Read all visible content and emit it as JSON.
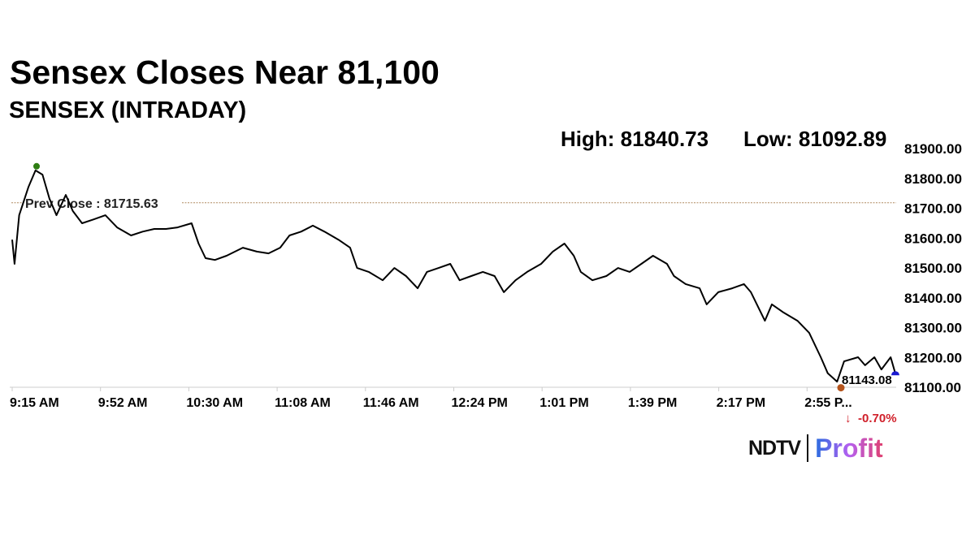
{
  "title": "Sensex Closes Near 81,100",
  "subtitle": "SENSEX (INTRADAY)",
  "high_label": "High: 81840.73",
  "low_label": "Low: 81092.89",
  "logo": {
    "brand": "NDTV",
    "product": "Profit"
  },
  "chart_data": {
    "type": "line",
    "title": "Sensex Closes Near 81,100",
    "subtitle": "SENSEX (INTRADAY)",
    "ylim": [
      81100,
      81900
    ],
    "y_ticks": [
      "81100.00",
      "81200.00",
      "81300.00",
      "81400.00",
      "81500.00",
      "81600.00",
      "81700.00",
      "81800.00",
      "81900.00"
    ],
    "x_ticks": [
      "9:15 AM",
      "9:52 AM",
      "10:30 AM",
      "11:08 AM",
      "11:46 AM",
      "12:24 PM",
      "1:01 PM",
      "1:39 PM",
      "2:17 PM",
      "2:55 P..."
    ],
    "prev_close": {
      "label": "Prev Close : 81715.63",
      "value": 81715.63
    },
    "last": {
      "value_label": "81143.08",
      "change_label": "-0.70%",
      "change_color": "#d0202a"
    },
    "high": 81840.73,
    "low": 81092.89,
    "colors": {
      "line": "#000000",
      "high_marker": "#2e7d12",
      "low_marker": "#b5541c",
      "last_marker": "#1a1ad0",
      "prev_close_line": "#b08a60"
    },
    "grid": false,
    "x": [
      "9:15",
      "9:16",
      "9:18",
      "9:22",
      "9:25",
      "9:28",
      "9:31",
      "9:34",
      "9:38",
      "9:41",
      "9:45",
      "9:50",
      "9:55",
      "10:00",
      "10:06",
      "10:11",
      "10:16",
      "10:21",
      "10:26",
      "10:32",
      "10:35",
      "10:38",
      "10:42",
      "10:47",
      "10:54",
      "11:00",
      "11:05",
      "11:10",
      "11:14",
      "11:19",
      "11:24",
      "11:29",
      "11:35",
      "11:40",
      "11:43",
      "11:48",
      "11:54",
      "11:59",
      "12:04",
      "12:09",
      "12:13",
      "12:18",
      "12:23",
      "12:27",
      "12:32",
      "12:37",
      "12:42",
      "12:46",
      "12:51",
      "12:56",
      "13:02",
      "13:07",
      "13:12",
      "13:16",
      "13:19",
      "13:24",
      "13:30",
      "13:35",
      "13:40",
      "13:45",
      "13:50",
      "13:56",
      "13:59",
      "14:04",
      "14:10",
      "14:13",
      "14:18",
      "14:24",
      "14:29",
      "14:32",
      "14:38",
      "14:41",
      "14:46",
      "14:52",
      "14:57",
      "15:02",
      "15:05",
      "15:09",
      "15:12",
      "15:18",
      "15:21",
      "15:25",
      "15:28",
      "15:32",
      "15:34"
    ],
    "values": [
      81592,
      81511,
      81674,
      81769,
      81824,
      81810,
      81729,
      81674,
      81742,
      81688,
      81647,
      81660,
      81674,
      81633,
      81606,
      81619,
      81628,
      81628,
      81633,
      81647,
      81579,
      81530,
      81524,
      81538,
      81565,
      81552,
      81546,
      81565,
      81606,
      81619,
      81639,
      81619,
      81592,
      81565,
      81497,
      81484,
      81456,
      81497,
      81470,
      81429,
      81484,
      81497,
      81511,
      81456,
      81470,
      81484,
      81470,
      81416,
      81456,
      81484,
      81511,
      81552,
      81579,
      81538,
      81484,
      81456,
      81470,
      81497,
      81484,
      81511,
      81538,
      81511,
      81470,
      81443,
      81429,
      81375,
      81416,
      81429,
      81443,
      81416,
      81320,
      81375,
      81348,
      81320,
      81280,
      81198,
      81144,
      81116,
      81184,
      81198,
      81171,
      81198,
      81157,
      81198,
      81143
    ]
  }
}
